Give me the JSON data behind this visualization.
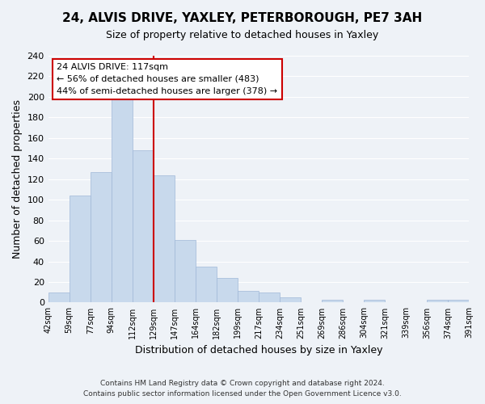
{
  "title": "24, ALVIS DRIVE, YAXLEY, PETERBOROUGH, PE7 3AH",
  "subtitle": "Size of property relative to detached houses in Yaxley",
  "xlabel": "Distribution of detached houses by size in Yaxley",
  "ylabel": "Number of detached properties",
  "bin_labels": [
    "42sqm",
    "59sqm",
    "77sqm",
    "94sqm",
    "112sqm",
    "129sqm",
    "147sqm",
    "164sqm",
    "182sqm",
    "199sqm",
    "217sqm",
    "234sqm",
    "251sqm",
    "269sqm",
    "286sqm",
    "304sqm",
    "321sqm",
    "339sqm",
    "356sqm",
    "374sqm",
    "391sqm"
  ],
  "bar_values": [
    10,
    104,
    127,
    199,
    148,
    124,
    61,
    35,
    24,
    11,
    10,
    5,
    0,
    3,
    0,
    3,
    0,
    0,
    3,
    3
  ],
  "bar_color": "#c8d9ec",
  "bar_edge_color": "#a0b8d8",
  "vline_color": "#cc0000",
  "vline_pos": 4.5,
  "ylim": [
    0,
    240
  ],
  "yticks": [
    0,
    20,
    40,
    60,
    80,
    100,
    120,
    140,
    160,
    180,
    200,
    220,
    240
  ],
  "annotation_title": "24 ALVIS DRIVE: 117sqm",
  "annotation_line1": "← 56% of detached houses are smaller (483)",
  "annotation_line2": "44% of semi-detached houses are larger (378) →",
  "annotation_box_color": "#ffffff",
  "annotation_box_edge": "#cc0000",
  "footer1": "Contains HM Land Registry data © Crown copyright and database right 2024.",
  "footer2": "Contains public sector information licensed under the Open Government Licence v3.0.",
  "background_color": "#eef2f7",
  "grid_color": "#ffffff"
}
